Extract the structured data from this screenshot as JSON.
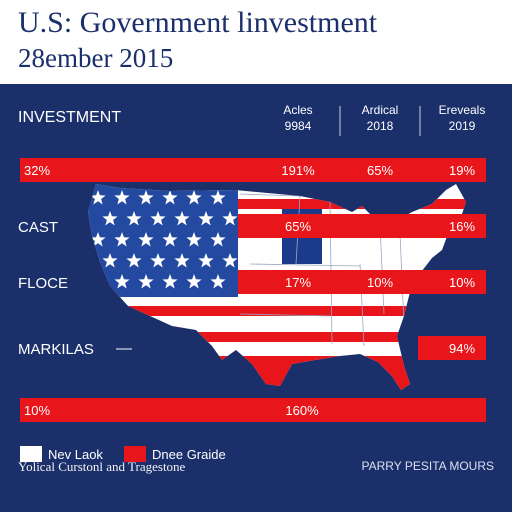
{
  "header": {
    "title": "U.S: Government linvestment",
    "subtitle": "28ember 2015"
  },
  "colors": {
    "background": "#1b2f6b",
    "header_bg": "#ffffff",
    "title_text": "#1b2f6b",
    "bar_red": "#e8151b",
    "map_white": "#ffffff",
    "map_blue": "#234aa0"
  },
  "chart_data": {
    "type": "table",
    "title": "U.S: Government linvestment",
    "subtitle": "28ember 2015",
    "row_header": "INVESTMENT",
    "columns": [
      {
        "label": "Acles",
        "sublabel": "9984"
      },
      {
        "label": "Ardical",
        "sublabel": "2018"
      },
      {
        "label": "Ereveals",
        "sublabel": "2019"
      }
    ],
    "rows": [
      {
        "label": "",
        "lead_value": "32%",
        "values": [
          "191%",
          "65%",
          "19%"
        ]
      },
      {
        "label": "CAST",
        "lead_value": "",
        "values": [
          "65%",
          "",
          "16%"
        ]
      },
      {
        "label": "FLOCE",
        "lead_value": "",
        "values": [
          "17%",
          "10%",
          "10%"
        ]
      },
      {
        "label": "MARKILAS",
        "lead_value": "",
        "values": [
          "",
          "",
          "94%"
        ]
      },
      {
        "label": "",
        "lead_value": "10%",
        "values": [
          "160%",
          "",
          ""
        ]
      }
    ],
    "legend": [
      {
        "label": "Nev Laok",
        "color": "#ffffff"
      },
      {
        "label": "Dnee Graide",
        "color": "#e8151b"
      }
    ]
  },
  "footer": {
    "left": "Yolical Curstonl and Tragestone",
    "right": "PARRY PESITA MOURS"
  }
}
